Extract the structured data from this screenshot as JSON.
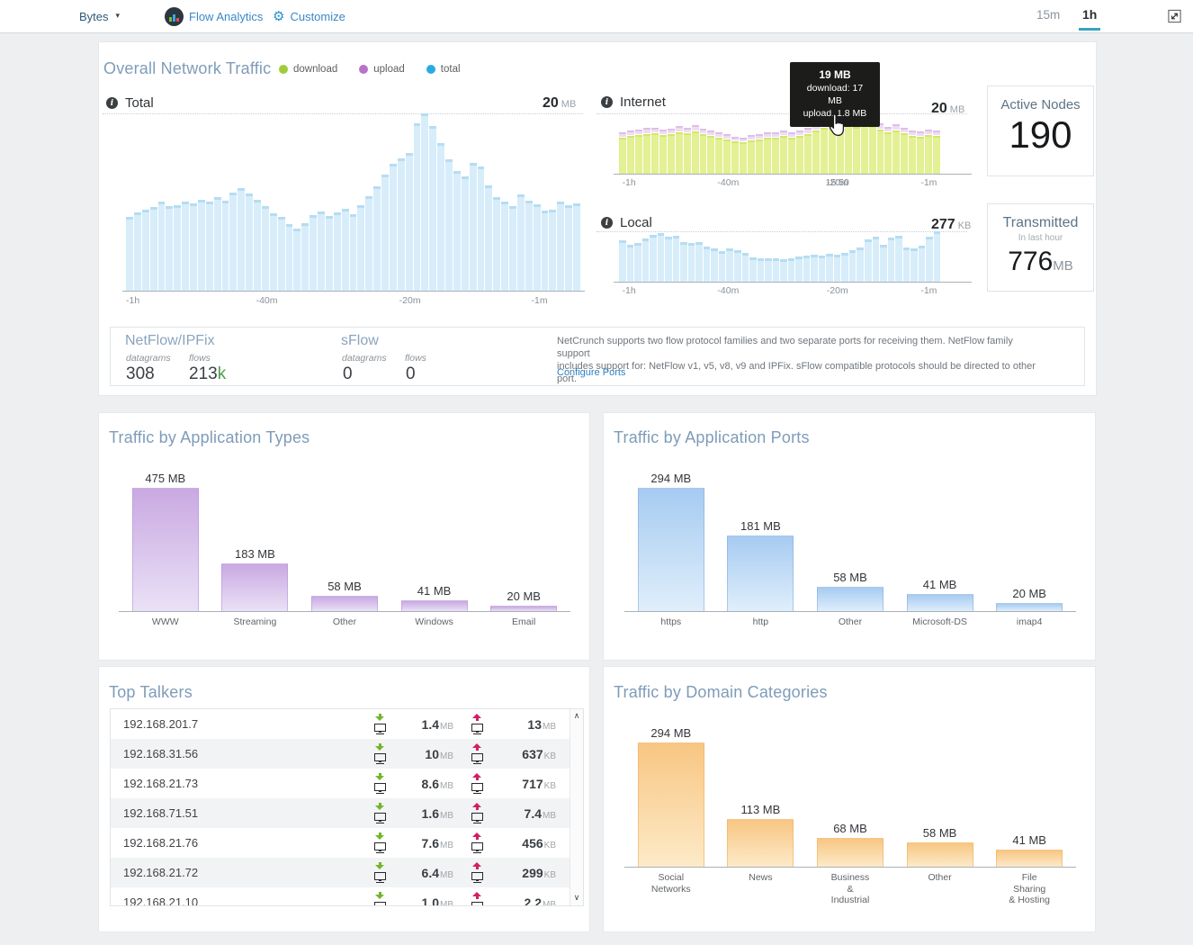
{
  "topbar": {
    "unit_selector": {
      "label": "Bytes"
    },
    "brand": {
      "label": "Flow Analytics"
    },
    "customize": {
      "label": "Customize"
    },
    "ranges": [
      {
        "label": "15m",
        "active": false
      },
      {
        "label": "1h",
        "active": true
      }
    ]
  },
  "overall": {
    "title": "Overall Network Traffic",
    "legend": [
      {
        "label": "download",
        "color": "#a0cc3a"
      },
      {
        "label": "upload",
        "color": "#b873c8"
      },
      {
        "label": "total",
        "color": "#29abe2"
      }
    ],
    "panels": {
      "total_label": "Total",
      "internet_label": "Internet",
      "local_label": "Local"
    },
    "max_labels": {
      "total": {
        "value": "20",
        "unit": "MB"
      },
      "internet": {
        "value": "20",
        "unit": "MB"
      },
      "local": {
        "value": "277",
        "unit": "KB"
      }
    },
    "tooltip": {
      "title": "19 MB",
      "line1": "download: 17 MB",
      "line2": "upload: 1.8 MB"
    },
    "time_marker": "15:50",
    "active_nodes": {
      "label": "Active Nodes",
      "value": "190"
    },
    "transmitted": {
      "label": "Transmitted",
      "sublabel": "In last hour",
      "value": "776",
      "unit": "MB"
    },
    "flow_info": {
      "netflow": {
        "title": "NetFlow/IPFix",
        "datagrams_label": "datagrams",
        "flows_label": "flows",
        "datagrams": "308",
        "flows": "213",
        "flows_suffix": "k"
      },
      "sflow": {
        "title": "sFlow",
        "datagrams_label": "datagrams",
        "flows_label": "flows",
        "datagrams": "0",
        "flows": "0"
      },
      "description": "NetCrunch supports two flow protocol families and two separate ports for receiving them. NetFlow family support\nincludes support for: NetFlow v1, v5, v8, v9 and IPFix. sFlow compatible protocols should be directed to other port.",
      "link": "Configure Ports"
    }
  },
  "chart_data": [
    {
      "id": "total",
      "type": "bar",
      "title": "Total",
      "ylim": [
        0,
        20
      ],
      "ymax_label": "20 MB",
      "x_ticks": [
        "-1h",
        "-40m",
        "-20m",
        "-1m"
      ],
      "values": [
        8.3,
        8.8,
        9.1,
        9.4,
        10.1,
        9.5,
        9.6,
        10.0,
        9.8,
        10.3,
        10.0,
        10.6,
        10.2,
        11.1,
        11.6,
        11.0,
        10.3,
        9.5,
        8.7,
        8.3,
        7.5,
        7.0,
        7.6,
        8.5,
        8.9,
        8.4,
        8.8,
        9.2,
        8.6,
        9.6,
        10.7,
        11.8,
        13.1,
        14.3,
        14.9,
        15.5,
        18.9,
        20.0,
        18.6,
        16.6,
        14.8,
        13.5,
        12.9,
        14.4,
        14.0,
        11.9,
        10.6,
        10.0,
        9.5,
        10.9,
        10.2,
        9.7,
        9.0,
        9.1,
        10.0,
        9.6,
        9.8
      ]
    },
    {
      "id": "internet",
      "type": "stacked-bar",
      "title": "Internet",
      "ylim": [
        0,
        20
      ],
      "ymax_label": "20 MB",
      "x_ticks": [
        "-1h",
        "-40m",
        "-20m",
        "-1m"
      ],
      "time_marker": "15:50",
      "series": [
        {
          "name": "download",
          "values": [
            12.0,
            12.5,
            12.8,
            13.0,
            13.3,
            12.8,
            13.2,
            13.8,
            13.4,
            13.9,
            13.2,
            12.6,
            12.0,
            11.4,
            10.8,
            10.4,
            11.0,
            11.4,
            11.8,
            12.0,
            12.4,
            12.0,
            12.6,
            13.2,
            14.2,
            15.2,
            15.8,
            17.0,
            16.2,
            15.4,
            16.6,
            15.8,
            14.6,
            13.6,
            14.4,
            13.4,
            12.6,
            12.2,
            12.8,
            12.4
          ]
        },
        {
          "name": "upload",
          "values": [
            1.5,
            1.6,
            1.5,
            1.7,
            1.6,
            1.5,
            1.6,
            1.7,
            1.6,
            1.8,
            1.6,
            1.5,
            1.4,
            1.4,
            1.3,
            1.3,
            1.4,
            1.5,
            1.5,
            1.6,
            1.6,
            1.5,
            1.6,
            1.7,
            1.8,
            1.9,
            1.9,
            1.8,
            1.9,
            1.8,
            1.9,
            1.8,
            1.7,
            1.6,
            1.7,
            1.6,
            1.5,
            1.5,
            1.6,
            1.5
          ]
        }
      ]
    },
    {
      "id": "local",
      "type": "bar",
      "title": "Local",
      "ylim": [
        0,
        277
      ],
      "ymax_label": "277 KB",
      "x_ticks": [
        "-1h",
        "-40m",
        "-20m",
        "-1m"
      ],
      "values": [
        230,
        205,
        215,
        235,
        255,
        265,
        245,
        250,
        220,
        215,
        220,
        195,
        185,
        170,
        185,
        172,
        160,
        132,
        128,
        130,
        128,
        122,
        130,
        138,
        142,
        148,
        144,
        154,
        150,
        160,
        172,
        186,
        232,
        245,
        205,
        240,
        252,
        188,
        182,
        200,
        245,
        277
      ]
    },
    {
      "id": "app_types",
      "type": "bar",
      "title": "Traffic by Application Types",
      "categories": [
        "WWW",
        "Streaming",
        "Other",
        "Windows",
        "Email"
      ],
      "values": [
        475,
        183,
        58,
        41,
        20
      ],
      "value_labels": [
        "475 MB",
        "183 MB",
        "58 MB",
        "41 MB",
        "20 MB"
      ],
      "unit": "MB"
    },
    {
      "id": "app_ports",
      "type": "bar",
      "title": "Traffic by Application Ports",
      "categories": [
        "https",
        "http",
        "Other",
        "Microsoft-DS",
        "imap4"
      ],
      "values": [
        294,
        181,
        58,
        41,
        20
      ],
      "value_labels": [
        "294 MB",
        "181 MB",
        "58 MB",
        "41 MB",
        "20 MB"
      ],
      "unit": "MB"
    },
    {
      "id": "domain_categories",
      "type": "bar",
      "title": "Traffic by Domain Categories",
      "categories": [
        "Social\nNetworks",
        "News",
        "Business\n&\nIndustrial",
        "Other",
        "File\nSharing\n& Hosting"
      ],
      "values": [
        294,
        113,
        68,
        58,
        41
      ],
      "value_labels": [
        "294 MB",
        "113 MB",
        "68 MB",
        "58 MB",
        "41 MB"
      ],
      "unit": "MB"
    }
  ],
  "top_talkers": {
    "title": "Top Talkers",
    "rows": [
      {
        "ip": "192.168.201.7",
        "down": "1.4",
        "down_unit": "MB",
        "up": "13",
        "up_unit": "MB"
      },
      {
        "ip": "192.168.31.56",
        "down": "10",
        "down_unit": "MB",
        "up": "637",
        "up_unit": "KB"
      },
      {
        "ip": "192.168.21.73",
        "down": "8.6",
        "down_unit": "MB",
        "up": "717",
        "up_unit": "KB"
      },
      {
        "ip": "192.168.71.51",
        "down": "1.6",
        "down_unit": "MB",
        "up": "7.4",
        "up_unit": "MB"
      },
      {
        "ip": "192.168.21.76",
        "down": "7.6",
        "down_unit": "MB",
        "up": "456",
        "up_unit": "KB"
      },
      {
        "ip": "192.168.21.72",
        "down": "6.4",
        "down_unit": "MB",
        "up": "299",
        "up_unit": "KB"
      },
      {
        "ip": "192.168.21.10",
        "down": "1.0",
        "down_unit": "MB",
        "up": "2.2",
        "up_unit": "MB"
      }
    ]
  }
}
